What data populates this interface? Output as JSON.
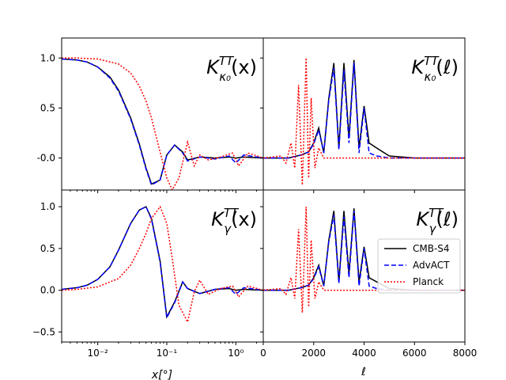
{
  "chart_data": {
    "type": "line",
    "legend": {
      "placement": "lower-right panel, right side",
      "entries": [
        {
          "name": "CMB-S4",
          "color": "#000000",
          "style": "solid"
        },
        {
          "name": "AdvACT",
          "color": "#0000ff",
          "style": "dashed"
        },
        {
          "name": "Planck",
          "color": "#ff0000",
          "style": "dotted"
        }
      ]
    },
    "left_xlabel": "x[°]",
    "right_xlabel": "ℓ",
    "panels": [
      {
        "id": "top-left",
        "title_main": "K",
        "title_sub": "κ₀",
        "title_sup": "TT",
        "title_arg": "(x)",
        "xscale": "log",
        "xlim": [
          0.003,
          2.5
        ],
        "ylim": [
          -0.32,
          1.2
        ],
        "yticks": [
          "-0.0",
          "0.5",
          "1.0"
        ],
        "series": [
          {
            "name": "CMB-S4",
            "x": [
              0.003,
              0.005,
              0.007,
              0.01,
              0.015,
              0.02,
              0.03,
              0.04,
              0.05,
              0.06,
              0.08,
              0.1,
              0.13,
              0.17,
              0.2,
              0.3,
              0.5,
              0.8,
              1.0,
              1.3,
              2.5
            ],
            "y": [
              0.99,
              0.98,
              0.96,
              0.91,
              0.81,
              0.68,
              0.4,
              0.14,
              -0.1,
              -0.26,
              -0.22,
              0.03,
              0.13,
              0.06,
              -0.02,
              0.01,
              0.0,
              0.01,
              0.0,
              0.01,
              0.0
            ]
          },
          {
            "name": "AdvACT",
            "x": [
              0.003,
              0.005,
              0.007,
              0.01,
              0.015,
              0.02,
              0.03,
              0.04,
              0.05,
              0.06,
              0.08,
              0.1,
              0.13,
              0.17,
              0.2,
              0.3,
              0.5,
              0.8,
              1.0,
              1.3,
              2.5
            ],
            "y": [
              0.99,
              0.98,
              0.96,
              0.91,
              0.8,
              0.67,
              0.39,
              0.13,
              -0.11,
              -0.27,
              -0.22,
              0.03,
              0.13,
              0.05,
              -0.03,
              0.01,
              -0.01,
              0.02,
              -0.05,
              0.03,
              0.0
            ]
          },
          {
            "name": "Planck",
            "x": [
              0.003,
              0.005,
              0.01,
              0.02,
              0.03,
              0.04,
              0.05,
              0.06,
              0.08,
              0.1,
              0.12,
              0.15,
              0.2,
              0.25,
              0.3,
              0.4,
              0.6,
              0.9,
              1.1,
              1.5,
              2.5
            ],
            "y": [
              1.0,
              1.0,
              0.99,
              0.94,
              0.85,
              0.72,
              0.57,
              0.4,
              0.06,
              -0.2,
              -0.32,
              -0.2,
              0.16,
              -0.08,
              0.03,
              -0.02,
              0.01,
              0.05,
              -0.08,
              0.05,
              0.0
            ]
          }
        ]
      },
      {
        "id": "top-right",
        "title_main": "K",
        "title_sub": "κ₀",
        "title_sup": "TT",
        "title_arg": "(ℓ)",
        "xscale": "linear",
        "xlim": [
          0,
          8000
        ],
        "ylim": [
          -0.32,
          1.2
        ],
        "series": [
          {
            "name": "CMB-S4",
            "x": [
              0,
              1000,
              1500,
              1800,
              2000,
              2200,
              2400,
              2600,
              2800,
              3000,
              3200,
              3400,
              3600,
              3800,
              4000,
              4200,
              4500,
              5000,
              6000,
              8000
            ],
            "y": [
              0.0,
              0.0,
              0.03,
              0.06,
              0.15,
              0.3,
              0.05,
              0.6,
              0.95,
              0.1,
              0.95,
              0.2,
              0.98,
              0.1,
              0.52,
              0.15,
              0.1,
              0.02,
              0.0,
              0.0
            ]
          },
          {
            "name": "AdvACT",
            "x": [
              0,
              1000,
              1500,
              1800,
              2000,
              2200,
              2400,
              2600,
              2800,
              3000,
              3200,
              3400,
              3600,
              3800,
              4000,
              4200,
              4500,
              5000,
              6000,
              8000
            ],
            "y": [
              0.0,
              0.0,
              0.03,
              0.06,
              0.14,
              0.28,
              0.05,
              0.58,
              0.9,
              0.08,
              0.88,
              0.15,
              0.95,
              0.05,
              0.5,
              0.05,
              0.02,
              0.0,
              0.0,
              0.0
            ]
          },
          {
            "name": "Planck",
            "x": [
              0,
              700,
              900,
              1100,
              1250,
              1400,
              1550,
              1700,
              1800,
              1900,
              2050,
              2200,
              2400,
              3000,
              8000
            ],
            "y": [
              0.0,
              0.02,
              -0.05,
              0.15,
              -0.1,
              0.73,
              -0.27,
              1.0,
              -0.2,
              0.6,
              -0.1,
              0.1,
              0.0,
              0.0,
              0.0
            ]
          }
        ]
      },
      {
        "id": "bottom-left",
        "title_main": "K",
        "title_sub": "γ",
        "title_sup": "TT",
        "title_arg": "(x)",
        "xscale": "log",
        "xlim": [
          0.003,
          2.5
        ],
        "ylim": [
          -0.62,
          1.2
        ],
        "yticks": [
          "−0.5",
          "0.0",
          "0.5",
          "1.0"
        ],
        "xticks": [
          "10⁻²",
          "10⁻¹",
          "10⁰"
        ],
        "series": [
          {
            "name": "CMB-S4",
            "x": [
              0.003,
              0.005,
              0.007,
              0.01,
              0.015,
              0.02,
              0.03,
              0.04,
              0.05,
              0.06,
              0.08,
              0.1,
              0.13,
              0.17,
              0.2,
              0.3,
              0.5,
              0.8,
              1.0,
              1.3,
              2.5
            ],
            "y": [
              0.01,
              0.03,
              0.06,
              0.13,
              0.28,
              0.48,
              0.8,
              0.96,
              1.0,
              0.86,
              0.35,
              -0.32,
              -0.14,
              0.1,
              0.02,
              -0.04,
              0.01,
              0.02,
              0.0,
              0.01,
              0.0
            ]
          },
          {
            "name": "AdvACT",
            "x": [
              0.003,
              0.005,
              0.007,
              0.01,
              0.015,
              0.02,
              0.03,
              0.04,
              0.05,
              0.06,
              0.08,
              0.1,
              0.13,
              0.17,
              0.2,
              0.3,
              0.5,
              0.8,
              1.0,
              1.3,
              2.5
            ],
            "y": [
              0.01,
              0.03,
              0.06,
              0.13,
              0.28,
              0.48,
              0.8,
              0.96,
              1.0,
              0.85,
              0.34,
              -0.33,
              -0.15,
              0.1,
              0.02,
              -0.04,
              0.01,
              0.03,
              -0.05,
              0.03,
              0.0
            ]
          },
          {
            "name": "Planck",
            "x": [
              0.003,
              0.005,
              0.01,
              0.02,
              0.03,
              0.04,
              0.05,
              0.06,
              0.08,
              0.1,
              0.12,
              0.15,
              0.2,
              0.25,
              0.3,
              0.4,
              0.6,
              0.9,
              1.1,
              1.5,
              2.5
            ],
            "y": [
              0.0,
              0.01,
              0.04,
              0.14,
              0.3,
              0.5,
              0.68,
              0.86,
              1.0,
              0.8,
              0.38,
              -0.18,
              -0.38,
              -0.02,
              0.12,
              -0.05,
              0.02,
              0.05,
              -0.08,
              0.05,
              0.0
            ]
          }
        ]
      },
      {
        "id": "bottom-right",
        "title_main": "K",
        "title_sub": "γ",
        "title_sup": "TT",
        "title_arg": "(ℓ)",
        "xscale": "linear",
        "xlim": [
          0,
          8000
        ],
        "ylim": [
          -0.62,
          1.2
        ],
        "xticks": [
          "0",
          "2000",
          "4000",
          "6000",
          "8000"
        ],
        "series": [
          {
            "name": "CMB-S4",
            "x": [
              0,
              1000,
              1500,
              1800,
              2000,
              2200,
              2400,
              2600,
              2800,
              3000,
              3200,
              3400,
              3600,
              3800,
              4000,
              4200,
              4500,
              5000,
              6000,
              8000
            ],
            "y": [
              0.0,
              0.0,
              0.03,
              0.06,
              0.15,
              0.3,
              0.05,
              0.6,
              0.95,
              0.1,
              0.95,
              0.2,
              0.98,
              0.1,
              0.52,
              0.15,
              0.1,
              0.02,
              0.0,
              0.0
            ]
          },
          {
            "name": "AdvACT",
            "x": [
              0,
              1000,
              1500,
              1800,
              2000,
              2200,
              2400,
              2600,
              2800,
              3000,
              3200,
              3400,
              3600,
              3800,
              4000,
              4200,
              4500,
              5000,
              6000,
              8000
            ],
            "y": [
              0.0,
              0.0,
              0.03,
              0.06,
              0.14,
              0.28,
              0.05,
              0.58,
              0.9,
              0.08,
              0.88,
              0.15,
              0.95,
              0.05,
              0.5,
              0.05,
              0.02,
              0.0,
              0.0,
              0.0
            ]
          },
          {
            "name": "Planck",
            "x": [
              0,
              700,
              900,
              1100,
              1250,
              1400,
              1550,
              1700,
              1800,
              1900,
              2050,
              2200,
              2400,
              3000,
              8000
            ],
            "y": [
              0.0,
              0.02,
              -0.05,
              0.15,
              -0.1,
              0.73,
              -0.27,
              1.0,
              -0.2,
              0.6,
              -0.1,
              0.1,
              0.0,
              0.0,
              0.0
            ]
          }
        ]
      }
    ]
  }
}
